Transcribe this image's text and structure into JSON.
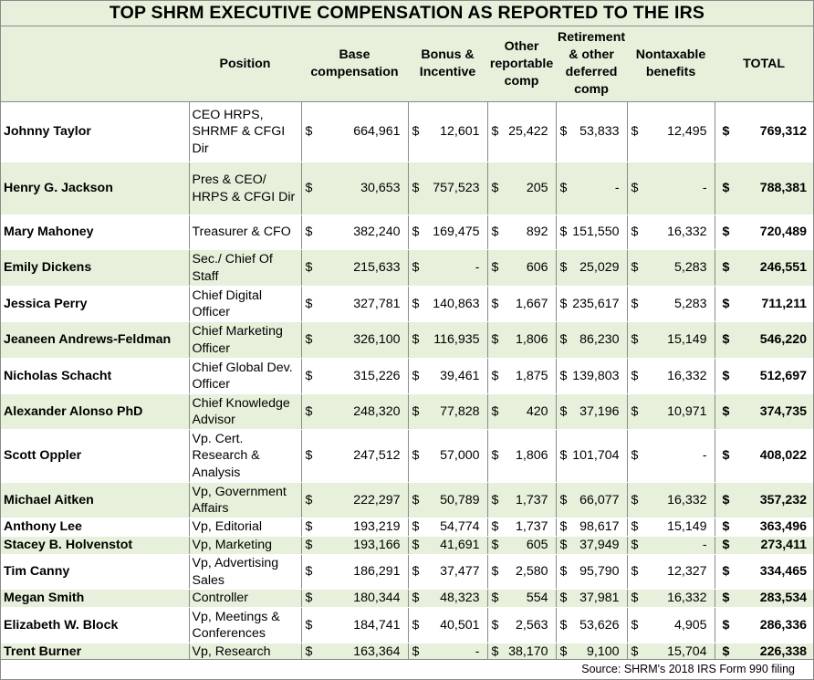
{
  "title": "TOP SHRM EXECUTIVE COMPENSATION AS REPORTED TO THE IRS",
  "headers": {
    "name": "",
    "position": "Position",
    "base": "Base compensation",
    "bonus": "Bonus & Incentive",
    "other": "Other reportable comp",
    "retirement": "Retirement & other deferred comp",
    "nontaxable": "Nontaxable benefits",
    "total": "TOTAL"
  },
  "currency_symbol": "$",
  "rows": [
    {
      "name": "Johnny Taylor",
      "position": "CEO HRPS, SHRMF & CFGI Dir",
      "base": "664,961",
      "bonus": "12,601",
      "other": "25,422",
      "retirement": "53,833",
      "nontaxable": "12,495",
      "total": "769,312"
    },
    {
      "name": "Henry G. Jackson",
      "position": "Pres & CEO/ HRPS & CFGI Dir",
      "base": "30,653",
      "bonus": "757,523",
      "other": "205",
      "retirement": "-",
      "nontaxable": "-",
      "total": "788,381"
    },
    {
      "name": "Mary Mahoney",
      "position": "Treasurer & CFO",
      "base": "382,240",
      "bonus": "169,475",
      "other": "892",
      "retirement": "151,550",
      "nontaxable": "16,332",
      "total": "720,489"
    },
    {
      "name": "Emily Dickens",
      "position": "Sec./ Chief Of Staff",
      "base": "215,633",
      "bonus": "-",
      "other": "606",
      "retirement": "25,029",
      "nontaxable": "5,283",
      "total": "246,551"
    },
    {
      "name": "Jessica Perry",
      "position": "Chief Digital Officer",
      "base": "327,781",
      "bonus": "140,863",
      "other": "1,667",
      "retirement": "235,617",
      "nontaxable": "5,283",
      "total": "711,211"
    },
    {
      "name": "Jeaneen Andrews-Feldman",
      "position": "Chief Marketing Officer",
      "base": "326,100",
      "bonus": "116,935",
      "other": "1,806",
      "retirement": "86,230",
      "nontaxable": "15,149",
      "total": "546,220"
    },
    {
      "name": "Nicholas Schacht",
      "position": "Chief Global Dev. Officer",
      "base": "315,226",
      "bonus": "39,461",
      "other": "1,875",
      "retirement": "139,803",
      "nontaxable": "16,332",
      "total": "512,697"
    },
    {
      "name": "Alexander Alonso PhD",
      "position": "Chief Knowledge Advisor",
      "base": "248,320",
      "bonus": "77,828",
      "other": "420",
      "retirement": "37,196",
      "nontaxable": "10,971",
      "total": "374,735"
    },
    {
      "name": "Scott Oppler",
      "position": "Vp. Cert. Research & Analysis",
      "base": "247,512",
      "bonus": "57,000",
      "other": "1,806",
      "retirement": "101,704",
      "nontaxable": "-",
      "total": "408,022"
    },
    {
      "name": "Michael Aitken",
      "position": "Vp, Government Affairs",
      "base": "222,297",
      "bonus": "50,789",
      "other": "1,737",
      "retirement": "66,077",
      "nontaxable": "16,332",
      "total": "357,232"
    },
    {
      "name": "Anthony Lee",
      "position": "Vp, Editorial",
      "base": "193,219",
      "bonus": "54,774",
      "other": "1,737",
      "retirement": "98,617",
      "nontaxable": "15,149",
      "total": "363,496"
    },
    {
      "name": "Stacey B. Holvenstot",
      "position": "Vp, Marketing",
      "base": "193,166",
      "bonus": "41,691",
      "other": "605",
      "retirement": "37,949",
      "nontaxable": "-",
      "total": "273,411"
    },
    {
      "name": "Tim Canny",
      "position": "Vp, Advertising Sales",
      "base": "186,291",
      "bonus": "37,477",
      "other": "2,580",
      "retirement": "95,790",
      "nontaxable": "12,327",
      "total": "334,465"
    },
    {
      "name": "Megan Smith",
      "position": "Controller",
      "base": "180,344",
      "bonus": "48,323",
      "other": "554",
      "retirement": "37,981",
      "nontaxable": "16,332",
      "total": "283,534"
    },
    {
      "name": "Elizabeth W. Block",
      "position": "Vp, Meetings & Conferences",
      "base": "184,741",
      "bonus": "40,501",
      "other": "2,563",
      "retirement": "53,626",
      "nontaxable": "4,905",
      "total": "286,336"
    },
    {
      "name": "Trent Burner",
      "position": "Vp, Research",
      "base": "163,364",
      "bonus": "-",
      "other": "38,170",
      "retirement": "9,100",
      "nontaxable": "15,704",
      "total": "226,338"
    }
  ],
  "source": "Source:  SHRM's 2018 IRS Form 990 filing"
}
